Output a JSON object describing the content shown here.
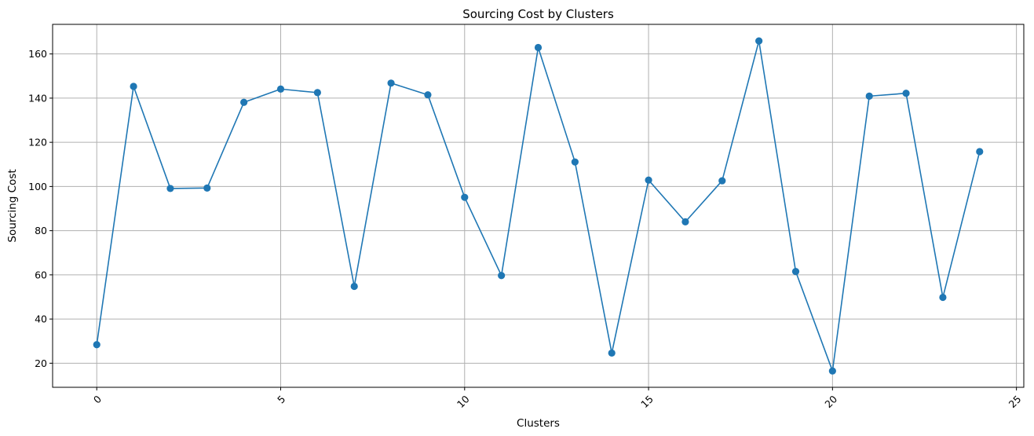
{
  "chart_data": {
    "type": "line",
    "title": "Sourcing Cost by Clusters",
    "xlabel": "Clusters",
    "ylabel": "Sourcing Cost",
    "x": [
      0,
      1,
      2,
      3,
      4,
      5,
      6,
      7,
      8,
      9,
      10,
      11,
      12,
      13,
      14,
      15,
      16,
      17,
      18,
      19,
      20,
      21,
      22,
      23,
      24
    ],
    "series": [
      {
        "values": [
          28.4,
          145.3,
          99.1,
          99.3,
          138.1,
          144.1,
          142.5,
          54.8,
          146.8,
          141.5,
          95.1,
          59.7,
          162.9,
          111.1,
          24.6,
          102.9,
          84.0,
          102.6,
          165.9,
          61.5,
          16.5,
          140.9,
          142.2,
          49.8,
          115.8
        ],
        "color": "#1f77b4",
        "marker": "circle"
      }
    ],
    "xlim": [
      -1.2,
      25.2
    ],
    "ylim": [
      9.1,
      173.4
    ],
    "xticks": [
      "0",
      "5",
      "10",
      "15",
      "20",
      "25"
    ],
    "xtick_values": [
      0,
      5,
      10,
      15,
      20,
      25
    ],
    "yticks": [
      "20",
      "40",
      "60",
      "80",
      "100",
      "120",
      "140",
      "160"
    ],
    "ytick_values": [
      20,
      40,
      60,
      80,
      100,
      120,
      140,
      160
    ],
    "xtick_rotation": 45,
    "grid": true,
    "grid_color": "#b0b0b0",
    "legend": false
  }
}
